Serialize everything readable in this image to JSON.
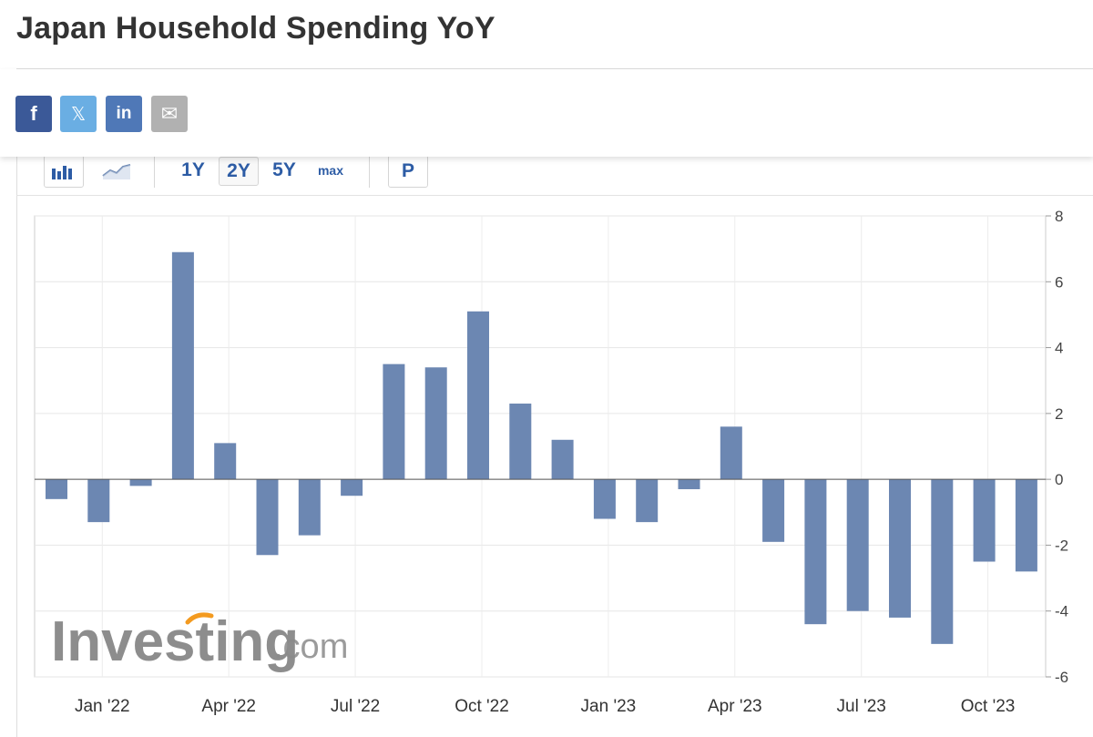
{
  "page": {
    "title": "Japan Household Spending YoY"
  },
  "share": [
    {
      "name": "facebook-icon",
      "glyph": "f",
      "color": "#3b5998"
    },
    {
      "name": "x-twitter-icon",
      "glyph": "𝕏",
      "color": "#6aaee3"
    },
    {
      "name": "linkedin-icon",
      "glyph": "in",
      "color": "#4f78b7"
    },
    {
      "name": "email-icon",
      "glyph": "✉",
      "color": "#b1b1b1"
    }
  ],
  "toolbar": {
    "ranges": [
      "1Y",
      "2Y",
      "5Y",
      "max"
    ],
    "active_range": "2Y",
    "p_label": "P",
    "accent": "#2d5ca5"
  },
  "watermark": {
    "brand": "Investing",
    "suffix": ".com"
  },
  "chart_data": {
    "type": "bar",
    "color": "#6c87b2",
    "x": [
      "Dec '21",
      "Jan '22",
      "Feb '22",
      "Mar '22",
      "Apr '22",
      "May '22",
      "Jun '22",
      "Jul '22",
      "Aug '22",
      "Sep '22",
      "Oct '22",
      "Nov '22",
      "Dec '22",
      "Jan '23",
      "Feb '23",
      "Mar '23",
      "Apr '23",
      "May '23",
      "Jun '23",
      "Jul '23",
      "Aug '23",
      "Sep '23",
      "Oct '23",
      "Nov '23"
    ],
    "values": [
      -0.6,
      -1.3,
      -0.2,
      6.9,
      1.1,
      -2.3,
      -1.7,
      -0.5,
      3.5,
      3.4,
      5.1,
      2.3,
      1.2,
      -1.2,
      -1.3,
      -0.3,
      1.6,
      -1.9,
      -4.4,
      -4.0,
      -4.2,
      -5.0,
      -2.5,
      -2.8
    ],
    "ylim": [
      -6,
      8
    ],
    "yticks": [
      8,
      6,
      4,
      2,
      0,
      -2,
      -4,
      -6
    ],
    "xtick_labels": [
      "Jan '22",
      "Apr '22",
      "Jul '22",
      "Oct '22",
      "Jan '23",
      "Apr '23",
      "Jul '23",
      "Oct '23"
    ],
    "axis_position": "right",
    "grid": true
  }
}
